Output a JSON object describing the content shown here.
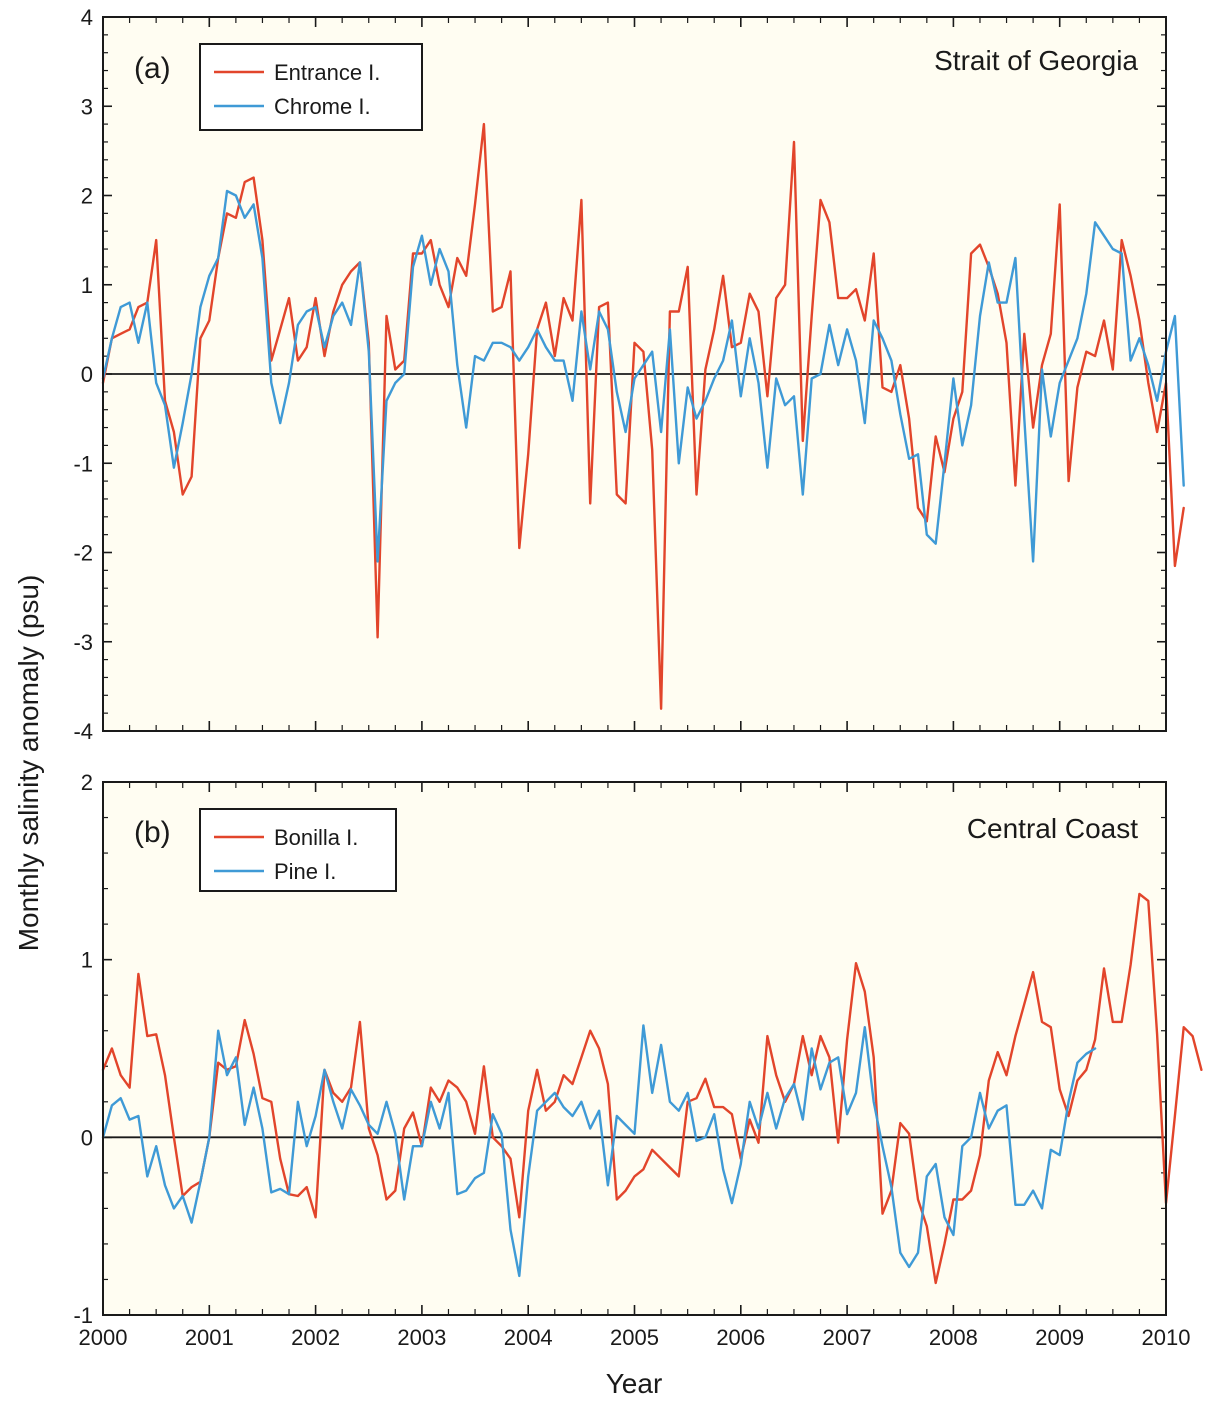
{
  "colors": {
    "red": "#e2452b",
    "blue": "#3f9ad6",
    "axis": "#1a1a1a",
    "background": "#fffdf2"
  },
  "figure": {
    "ylabel": "Monthly salinity anomaly (psu)",
    "xlabel": "Year"
  },
  "chart_data": [
    {
      "type": "line",
      "panel_label": "(a)",
      "title": "Strait of Georgia",
      "legend_position": "top-left",
      "x_unit": "year (monthly samples starting 2000.0)",
      "xlim": [
        2000,
        2010
      ],
      "ylim": [
        -4,
        4
      ],
      "yticks": [
        -4,
        -3,
        -2,
        -1,
        0,
        1,
        2,
        3,
        4
      ],
      "xticks": [
        2000,
        2001,
        2002,
        2003,
        2004,
        2005,
        2006,
        2007,
        2008,
        2009,
        2010
      ],
      "zero_line": true,
      "series": [
        {
          "name": "Entrance I.",
          "color": "#e2452b",
          "values": [
            -0.1,
            0.4,
            0.45,
            0.5,
            0.75,
            0.8,
            1.5,
            -0.3,
            -0.65,
            -1.35,
            -1.15,
            0.4,
            0.6,
            1.3,
            1.8,
            1.75,
            2.15,
            2.2,
            1.5,
            0.15,
            0.5,
            0.85,
            0.15,
            0.3,
            0.85,
            0.2,
            0.7,
            1.0,
            1.15,
            1.25,
            0.35,
            -2.95,
            0.65,
            0.05,
            0.15,
            1.35,
            1.35,
            1.5,
            1.0,
            0.75,
            1.3,
            1.1,
            1.9,
            2.8,
            0.7,
            0.75,
            1.15,
            -1.95,
            -0.9,
            0.5,
            0.8,
            0.2,
            0.85,
            0.6,
            1.95,
            -1.45,
            0.75,
            0.8,
            -1.35,
            -1.45,
            0.35,
            0.25,
            -0.85,
            -3.75,
            0.7,
            0.7,
            1.2,
            -1.35,
            0.05,
            0.5,
            1.1,
            0.3,
            0.35,
            0.9,
            0.7,
            -0.25,
            0.85,
            1.0,
            2.6,
            -0.75,
            0.65,
            1.95,
            1.7,
            0.85,
            0.85,
            0.95,
            0.6,
            1.35,
            -0.15,
            -0.2,
            0.1,
            -0.5,
            -1.5,
            -1.65,
            -0.7,
            -1.1,
            -0.5,
            -0.2,
            1.35,
            1.45,
            1.2,
            0.9,
            0.35,
            -1.25,
            0.45,
            -0.6,
            0.1,
            0.45,
            1.9,
            -1.2,
            -0.15,
            0.25,
            0.2,
            0.6,
            0.05,
            1.5,
            1.1,
            0.6,
            -0.1,
            -0.65,
            -0.1,
            -2.15,
            -1.5
          ]
        },
        {
          "name": "Chrome I.",
          "color": "#3f9ad6",
          "values": [
            -0.05,
            0.4,
            0.75,
            0.8,
            0.35,
            0.8,
            -0.1,
            -0.35,
            -1.05,
            -0.55,
            0.0,
            0.75,
            1.1,
            1.3,
            2.05,
            2.0,
            1.75,
            1.9,
            1.3,
            -0.1,
            -0.55,
            -0.1,
            0.55,
            0.7,
            0.75,
            0.3,
            0.65,
            0.8,
            0.55,
            1.25,
            0.25,
            -2.1,
            -0.3,
            -0.1,
            0.0,
            1.2,
            1.55,
            1.0,
            1.4,
            1.15,
            0.1,
            -0.6,
            0.2,
            0.15,
            0.35,
            0.35,
            0.3,
            0.15,
            0.3,
            0.5,
            0.3,
            0.15,
            0.15,
            -0.3,
            0.7,
            0.05,
            0.7,
            0.5,
            -0.2,
            -0.65,
            -0.05,
            0.1,
            0.25,
            -0.65,
            0.5,
            -1.0,
            -0.15,
            -0.5,
            -0.3,
            -0.05,
            0.15,
            0.6,
            -0.25,
            0.4,
            -0.1,
            -1.05,
            -0.05,
            -0.35,
            -0.25,
            -1.35,
            -0.05,
            0.0,
            0.55,
            0.1,
            0.5,
            0.15,
            -0.55,
            0.6,
            0.4,
            0.15,
            -0.45,
            -0.95,
            -0.9,
            -1.8,
            -1.9,
            -1.0,
            -0.05,
            -0.8,
            -0.35,
            0.65,
            1.25,
            0.8,
            0.8,
            1.3,
            -0.5,
            -2.1,
            0.05,
            -0.7,
            -0.1,
            0.15,
            0.4,
            0.9,
            1.7,
            1.55,
            1.4,
            1.35,
            0.15,
            0.4,
            0.1,
            -0.3,
            0.25,
            0.65,
            -1.25
          ]
        }
      ]
    },
    {
      "type": "line",
      "panel_label": "(b)",
      "title": "Central Coast",
      "legend_position": "top-left",
      "x_unit": "year (monthly samples starting 2000.0)",
      "xlim": [
        2000,
        2010
      ],
      "ylim": [
        -1,
        2
      ],
      "yticks": [
        -1,
        0,
        1,
        2
      ],
      "xticks": [
        2000,
        2001,
        2002,
        2003,
        2004,
        2005,
        2006,
        2007,
        2008,
        2009,
        2010
      ],
      "zero_line": true,
      "series": [
        {
          "name": "Bonilla I.",
          "color": "#e2452b",
          "values": [
            0.38,
            0.5,
            0.35,
            0.28,
            0.92,
            0.57,
            0.58,
            0.35,
            0.0,
            -0.33,
            -0.28,
            -0.25,
            0.0,
            0.42,
            0.38,
            0.4,
            0.66,
            0.47,
            0.22,
            0.2,
            -0.12,
            -0.32,
            -0.33,
            -0.28,
            -0.45,
            0.38,
            0.25,
            0.2,
            0.28,
            0.65,
            0.05,
            -0.1,
            -0.35,
            -0.3,
            0.05,
            0.14,
            -0.05,
            0.28,
            0.2,
            0.32,
            0.28,
            0.2,
            0.02,
            0.4,
            0.0,
            -0.05,
            -0.12,
            -0.45,
            0.15,
            0.38,
            0.15,
            0.2,
            0.35,
            0.3,
            0.45,
            0.6,
            0.5,
            0.3,
            -0.35,
            -0.3,
            -0.22,
            -0.18,
            -0.07,
            -0.12,
            -0.17,
            -0.22,
            0.2,
            0.22,
            0.33,
            0.17,
            0.17,
            0.13,
            -0.12,
            0.1,
            -0.03,
            0.57,
            0.35,
            0.2,
            0.3,
            0.57,
            0.35,
            0.57,
            0.45,
            -0.03,
            0.55,
            0.98,
            0.82,
            0.45,
            -0.43,
            -0.3,
            0.08,
            0.02,
            -0.35,
            -0.5,
            -0.82,
            -0.6,
            -0.35,
            -0.35,
            -0.3,
            -0.1,
            0.32,
            0.48,
            0.35,
            0.57,
            0.75,
            0.93,
            0.65,
            0.62,
            0.27,
            0.12,
            0.32,
            0.38,
            0.55,
            0.95,
            0.65,
            0.65,
            0.97,
            1.37,
            1.33,
            0.58,
            -0.37,
            0.12,
            0.62,
            0.57,
            0.38
          ]
        },
        {
          "name": "Pine I.",
          "color": "#3f9ad6",
          "values": [
            0.0,
            0.18,
            0.22,
            0.1,
            0.12,
            -0.22,
            -0.05,
            -0.27,
            -0.4,
            -0.33,
            -0.48,
            -0.25,
            0.0,
            0.6,
            0.35,
            0.45,
            0.07,
            0.28,
            0.05,
            -0.31,
            -0.29,
            -0.32,
            0.2,
            -0.05,
            0.12,
            0.38,
            0.2,
            0.05,
            0.27,
            0.18,
            0.07,
            0.02,
            0.2,
            0.02,
            -0.35,
            -0.05,
            -0.05,
            0.2,
            0.05,
            0.25,
            -0.32,
            -0.3,
            -0.23,
            -0.2,
            0.13,
            0.02,
            -0.52,
            -0.78,
            -0.22,
            0.15,
            0.2,
            0.25,
            0.17,
            0.12,
            0.2,
            0.05,
            0.15,
            -0.27,
            0.12,
            0.07,
            0.02,
            0.63,
            0.25,
            0.52,
            0.2,
            0.15,
            0.25,
            -0.02,
            0.0,
            0.13,
            -0.18,
            -0.37,
            -0.15,
            0.2,
            0.05,
            0.25,
            0.05,
            0.22,
            0.3,
            0.1,
            0.5,
            0.27,
            0.42,
            0.45,
            0.13,
            0.25,
            0.62,
            0.2,
            -0.05,
            -0.28,
            -0.65,
            -0.73,
            -0.65,
            -0.22,
            -0.15,
            -0.45,
            -0.55,
            -0.05,
            0.0,
            0.25,
            0.05,
            0.15,
            0.18,
            -0.38,
            -0.38,
            -0.3,
            -0.4,
            -0.07,
            -0.1,
            0.2,
            0.42,
            0.47,
            0.5
          ]
        }
      ]
    }
  ]
}
